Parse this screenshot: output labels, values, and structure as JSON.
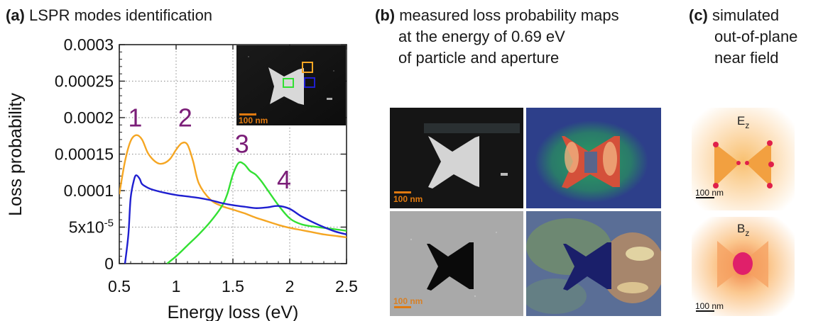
{
  "panel_a": {
    "letter": "(a)",
    "title": "LSPR modes identification",
    "inset_scale_label": "100 nm"
  },
  "panel_b": {
    "letter": "(b)",
    "title_lines": [
      "measured loss probability maps",
      "at the energy of 0.69 eV",
      "of particle and aperture"
    ],
    "scale_label_top": "100 nm",
    "scale_label_bottom": "100 nm"
  },
  "panel_c": {
    "letter": "(c)",
    "title_lines": [
      "simulated",
      "out-of-plane",
      "near field"
    ],
    "label_top": "E",
    "label_top_sub": "z",
    "label_bottom": "B",
    "label_bottom_sub": "z",
    "scale_label_top": "100 nm",
    "scale_label_bottom": "100 nm"
  },
  "colors": {
    "orange": "#f5a623",
    "green": "#33e033",
    "blue": "#1f1fd0",
    "peak_label": "#7b1e78",
    "scale_bar": "#e07a10"
  },
  "chart_data": {
    "type": "line",
    "xlabel": "Energy loss (eV)",
    "ylabel": "Loss probability",
    "xlim": [
      0.5,
      2.5
    ],
    "ylim": [
      0,
      0.0003
    ],
    "x_ticks": [
      0.5,
      1,
      1.5,
      2,
      2.5
    ],
    "x_tick_labels": [
      "0.5",
      "1",
      "1.5",
      "2",
      "2.5"
    ],
    "y_ticks": [
      0,
      5e-05,
      0.0001,
      0.00015,
      0.0002,
      0.00025,
      0.0003
    ],
    "y_tick_labels": [
      "0",
      "5x10-5",
      "0.0001",
      "0.00015",
      "0.0002",
      "0.00025",
      "0.0003"
    ],
    "grid": "dotted vertical and horizontal",
    "peak_labels": [
      {
        "text": "1",
        "x": 0.64,
        "y": 0.000188
      },
      {
        "text": "2",
        "x": 1.08,
        "y": 0.000188
      },
      {
        "text": "3",
        "x": 1.58,
        "y": 0.000152
      },
      {
        "text": "4",
        "x": 1.95,
        "y": 0.000103
      }
    ],
    "series": [
      {
        "color": "#f5a623",
        "x": [
          0.5,
          0.55,
          0.6,
          0.65,
          0.7,
          0.75,
          0.8,
          0.85,
          0.9,
          0.95,
          1.0,
          1.05,
          1.1,
          1.15,
          1.2,
          1.3,
          1.4,
          1.5,
          1.6,
          1.7,
          1.8,
          1.9,
          2.0,
          2.1,
          2.2,
          2.3,
          2.4,
          2.5
        ],
        "values": [
          9.5e-05,
          0.00014,
          0.000168,
          0.000176,
          0.00017,
          0.000152,
          0.000142,
          0.000137,
          0.000138,
          0.000144,
          0.000156,
          0.000165,
          0.000163,
          0.00014,
          0.00011,
          8.8e-05,
          7.9e-05,
          7.4e-05,
          6.9e-05,
          6.3e-05,
          5.8e-05,
          5.3e-05,
          4.9e-05,
          4.6e-05,
          4.3e-05,
          4e-05,
          3.8e-05,
          3.6e-05
        ]
      },
      {
        "color": "#33e033",
        "x": [
          0.92,
          1.0,
          1.1,
          1.2,
          1.3,
          1.4,
          1.45,
          1.5,
          1.55,
          1.6,
          1.65,
          1.7,
          1.75,
          1.8,
          1.9,
          2.0,
          2.1,
          2.2,
          2.3,
          2.4,
          2.5
        ],
        "values": [
          0,
          1e-05,
          2.5e-05,
          4e-05,
          5.7e-05,
          7.8e-05,
          9.5e-05,
          0.000122,
          0.000138,
          0.000136,
          0.000127,
          0.000122,
          0.000113,
          0.000102,
          8e-05,
          6.2e-05,
          5.4e-05,
          5.1e-05,
          4.9e-05,
          4.7e-05,
          4.5e-05
        ]
      },
      {
        "color": "#1f1fd0",
        "x": [
          0.55,
          0.58,
          0.6,
          0.63,
          0.65,
          0.68,
          0.7,
          0.75,
          0.8,
          0.9,
          1.0,
          1.1,
          1.2,
          1.3,
          1.4,
          1.5,
          1.6,
          1.7,
          1.8,
          1.9,
          2.0,
          2.1,
          2.2,
          2.3,
          2.4,
          2.5
        ],
        "values": [
          0,
          4e-05,
          9e-05,
          0.000115,
          0.000121,
          0.000116,
          0.000109,
          0.000104,
          0.000101,
          9.7e-05,
          9.4e-05,
          9.2e-05,
          9e-05,
          8.7e-05,
          8.3e-05,
          8e-05,
          7.8e-05,
          7.6e-05,
          7.7e-05,
          7.9e-05,
          7.5e-05,
          6.5e-05,
          5.7e-05,
          5e-05,
          4.4e-05,
          4e-05
        ]
      }
    ]
  }
}
